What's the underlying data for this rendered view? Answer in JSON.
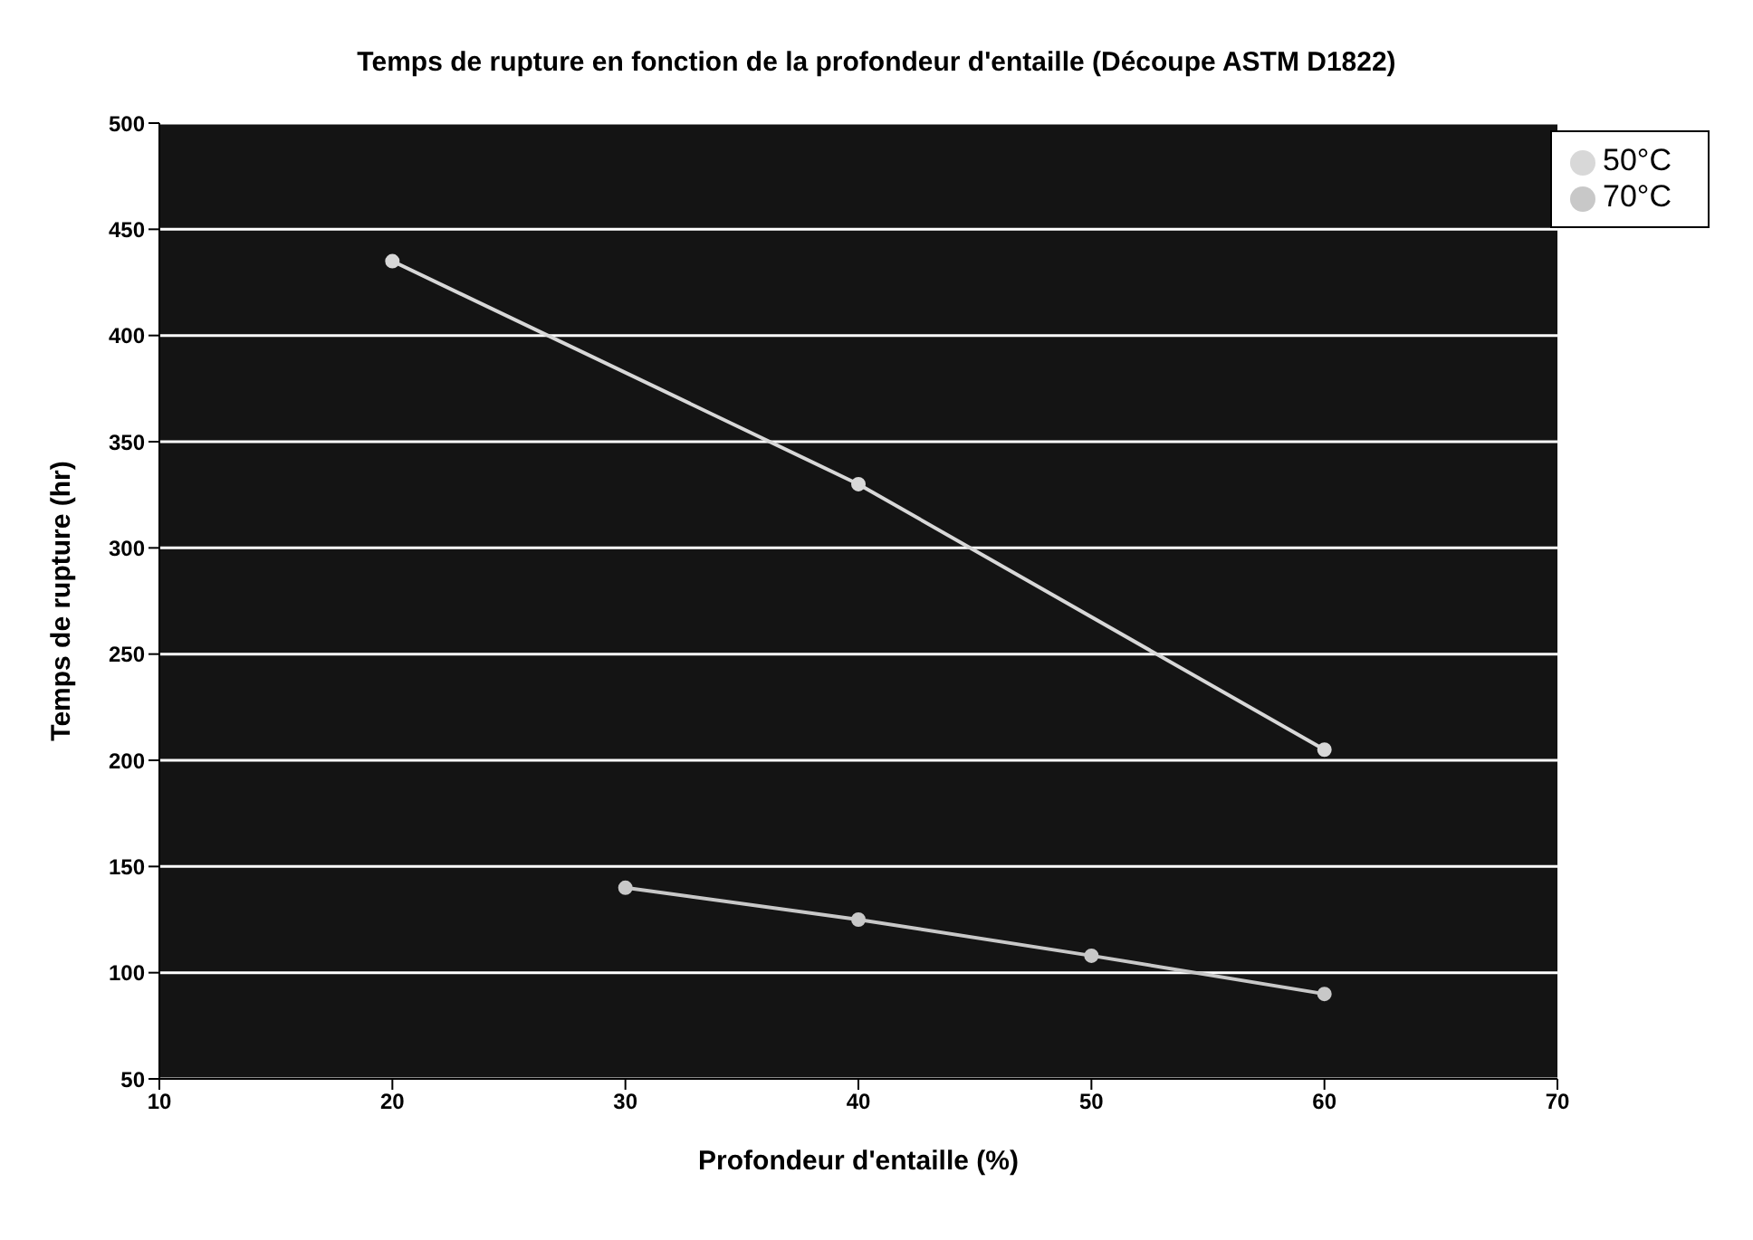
{
  "chart_data": {
    "type": "line",
    "title": "Temps de rupture en fonction de la profondeur d'entaille (Découpe ASTM D1822)",
    "xlabel": "Profondeur d'entaille (%)",
    "ylabel": "Temps de rupture (hr)",
    "xlim": [
      10,
      70
    ],
    "xticks": [
      10,
      20,
      30,
      40,
      50,
      60,
      70
    ],
    "ylim": [
      50,
      500
    ],
    "yticks": [
      50,
      100,
      150,
      200,
      250,
      300,
      350,
      400,
      450,
      500
    ],
    "series": [
      {
        "name": "50°C",
        "color": "#d8d8d8",
        "x": [
          20,
          40,
          60
        ],
        "values": [
          435,
          330,
          205
        ]
      },
      {
        "name": "70°C",
        "color": "#c8c8c8",
        "x": [
          30,
          40,
          50,
          60
        ],
        "values": [
          140,
          125,
          108,
          90
        ]
      }
    ],
    "grid": "y",
    "legend": "top right",
    "marker": "circle",
    "line_style": "solid"
  }
}
